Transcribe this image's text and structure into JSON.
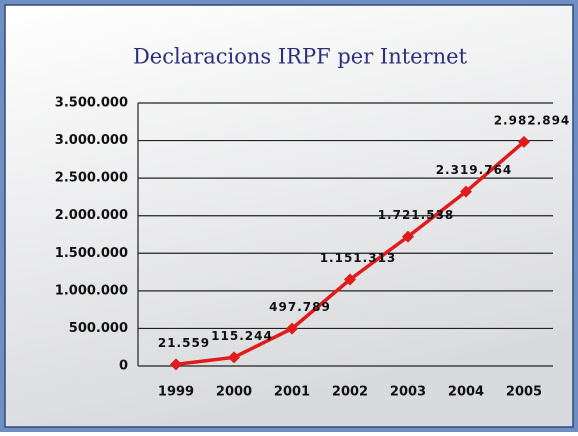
{
  "chart_data": {
    "type": "line",
    "title": "Declaracions IRPF per Internet",
    "categories": [
      "1999",
      "2000",
      "2001",
      "2002",
      "2003",
      "2004",
      "2005"
    ],
    "series": [
      {
        "name": "Declaracions",
        "color": "#e01b1b",
        "values": [
          21559,
          115244,
          497789,
          1151313,
          1721538,
          2319764,
          2982894
        ],
        "value_labels": [
          "21.559",
          "115.244",
          "497.789",
          "1.151.313",
          "1.721.538",
          "2.319.764",
          "2.982.894"
        ]
      }
    ],
    "ylim": [
      0,
      3500000
    ],
    "yticks": [
      {
        "value": 0,
        "label": "0"
      },
      {
        "value": 500000,
        "label": "500.000"
      },
      {
        "value": 1000000,
        "label": "1.000.000"
      },
      {
        "value": 1500000,
        "label": "1.500.000"
      },
      {
        "value": 2000000,
        "label": "2.000.000"
      },
      {
        "value": 2500000,
        "label": "2.500.000"
      },
      {
        "value": 3000000,
        "label": "3.000.000"
      },
      {
        "value": 3500000,
        "label": "3.500.000"
      }
    ],
    "grid": true
  }
}
